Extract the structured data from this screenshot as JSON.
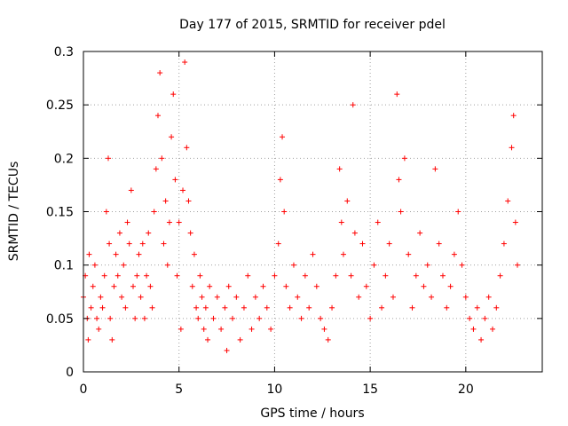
{
  "chart_data": {
    "type": "scatter",
    "title": "Day 177 of 2015, SRMTID for receiver pdel",
    "xlabel": "GPS time / hours",
    "ylabel": "SRMTID / TECUs",
    "xlim": [
      0,
      24
    ],
    "ylim": [
      0,
      0.3
    ],
    "xticks": [
      0,
      5,
      10,
      15,
      20
    ],
    "xtick_labels": [
      "0",
      "5",
      "10",
      "15",
      "20"
    ],
    "yticks": [
      0,
      0.05,
      0.1,
      0.15,
      0.2,
      0.25,
      0.3
    ],
    "ytick_labels": [
      "0",
      "0.05",
      "0.1",
      "0.15",
      "0.2",
      "0.25",
      "0.3"
    ],
    "grid": true,
    "marker": "+",
    "color": "#ff0000",
    "series": [
      {
        "name": "SRMTID",
        "points": [
          [
            0.0,
            0.07
          ],
          [
            0.1,
            0.09
          ],
          [
            0.2,
            0.05
          ],
          [
            0.25,
            0.03
          ],
          [
            0.3,
            0.11
          ],
          [
            0.4,
            0.06
          ],
          [
            0.5,
            0.08
          ],
          [
            0.6,
            0.1
          ],
          [
            0.7,
            0.05
          ],
          [
            0.8,
            0.04
          ],
          [
            0.9,
            0.07
          ],
          [
            1.0,
            0.06
          ],
          [
            1.1,
            0.09
          ],
          [
            1.2,
            0.15
          ],
          [
            1.3,
            0.2
          ],
          [
            1.35,
            0.12
          ],
          [
            1.4,
            0.05
          ],
          [
            1.5,
            0.03
          ],
          [
            1.6,
            0.08
          ],
          [
            1.7,
            0.11
          ],
          [
            1.8,
            0.09
          ],
          [
            1.9,
            0.13
          ],
          [
            2.0,
            0.07
          ],
          [
            2.1,
            0.1
          ],
          [
            2.2,
            0.06
          ],
          [
            2.3,
            0.14
          ],
          [
            2.4,
            0.12
          ],
          [
            2.5,
            0.17
          ],
          [
            2.6,
            0.08
          ],
          [
            2.7,
            0.05
          ],
          [
            2.8,
            0.09
          ],
          [
            2.9,
            0.11
          ],
          [
            3.0,
            0.07
          ],
          [
            3.1,
            0.12
          ],
          [
            3.2,
            0.05
          ],
          [
            3.3,
            0.09
          ],
          [
            3.4,
            0.13
          ],
          [
            3.5,
            0.08
          ],
          [
            3.6,
            0.06
          ],
          [
            3.7,
            0.15
          ],
          [
            3.8,
            0.19
          ],
          [
            3.9,
            0.24
          ],
          [
            4.0,
            0.28
          ],
          [
            4.1,
            0.2
          ],
          [
            4.2,
            0.12
          ],
          [
            4.3,
            0.16
          ],
          [
            4.4,
            0.1
          ],
          [
            4.5,
            0.14
          ],
          [
            4.6,
            0.22
          ],
          [
            4.7,
            0.26
          ],
          [
            4.8,
            0.18
          ],
          [
            4.9,
            0.09
          ],
          [
            5.0,
            0.14
          ],
          [
            5.1,
            0.04
          ],
          [
            5.2,
            0.17
          ],
          [
            5.3,
            0.29
          ],
          [
            5.4,
            0.21
          ],
          [
            5.5,
            0.16
          ],
          [
            5.6,
            0.13
          ],
          [
            5.7,
            0.08
          ],
          [
            5.8,
            0.11
          ],
          [
            5.9,
            0.06
          ],
          [
            6.0,
            0.05
          ],
          [
            6.1,
            0.09
          ],
          [
            6.2,
            0.07
          ],
          [
            6.3,
            0.04
          ],
          [
            6.4,
            0.06
          ],
          [
            6.5,
            0.03
          ],
          [
            6.6,
            0.08
          ],
          [
            6.8,
            0.05
          ],
          [
            7.0,
            0.07
          ],
          [
            7.2,
            0.04
          ],
          [
            7.4,
            0.06
          ],
          [
            7.5,
            0.02
          ],
          [
            7.6,
            0.08
          ],
          [
            7.8,
            0.05
          ],
          [
            8.0,
            0.07
          ],
          [
            8.2,
            0.03
          ],
          [
            8.4,
            0.06
          ],
          [
            8.6,
            0.09
          ],
          [
            8.8,
            0.04
          ],
          [
            9.0,
            0.07
          ],
          [
            9.2,
            0.05
          ],
          [
            9.4,
            0.08
          ],
          [
            9.6,
            0.06
          ],
          [
            9.8,
            0.04
          ],
          [
            10.0,
            0.09
          ],
          [
            10.2,
            0.12
          ],
          [
            10.3,
            0.18
          ],
          [
            10.4,
            0.22
          ],
          [
            10.5,
            0.15
          ],
          [
            10.6,
            0.08
          ],
          [
            10.8,
            0.06
          ],
          [
            11.0,
            0.1
          ],
          [
            11.2,
            0.07
          ],
          [
            11.4,
            0.05
          ],
          [
            11.6,
            0.09
          ],
          [
            11.8,
            0.06
          ],
          [
            12.0,
            0.11
          ],
          [
            12.2,
            0.08
          ],
          [
            12.4,
            0.05
          ],
          [
            12.6,
            0.04
          ],
          [
            12.8,
            0.03
          ],
          [
            13.0,
            0.06
          ],
          [
            13.2,
            0.09
          ],
          [
            13.4,
            0.19
          ],
          [
            13.5,
            0.14
          ],
          [
            13.6,
            0.11
          ],
          [
            13.8,
            0.16
          ],
          [
            14.0,
            0.09
          ],
          [
            14.1,
            0.25
          ],
          [
            14.2,
            0.13
          ],
          [
            14.4,
            0.07
          ],
          [
            14.6,
            0.12
          ],
          [
            14.8,
            0.08
          ],
          [
            15.0,
            0.05
          ],
          [
            15.2,
            0.1
          ],
          [
            15.4,
            0.14
          ],
          [
            15.6,
            0.06
          ],
          [
            15.8,
            0.09
          ],
          [
            16.0,
            0.12
          ],
          [
            16.2,
            0.07
          ],
          [
            16.4,
            0.26
          ],
          [
            16.5,
            0.18
          ],
          [
            16.6,
            0.15
          ],
          [
            16.8,
            0.2
          ],
          [
            17.0,
            0.11
          ],
          [
            17.2,
            0.06
          ],
          [
            17.4,
            0.09
          ],
          [
            17.6,
            0.13
          ],
          [
            17.8,
            0.08
          ],
          [
            18.0,
            0.1
          ],
          [
            18.2,
            0.07
          ],
          [
            18.4,
            0.19
          ],
          [
            18.6,
            0.12
          ],
          [
            18.8,
            0.09
          ],
          [
            19.0,
            0.06
          ],
          [
            19.2,
            0.08
          ],
          [
            19.4,
            0.11
          ],
          [
            19.6,
            0.15
          ],
          [
            19.8,
            0.1
          ],
          [
            20.0,
            0.07
          ],
          [
            20.2,
            0.05
          ],
          [
            20.4,
            0.04
          ],
          [
            20.6,
            0.06
          ],
          [
            20.8,
            0.03
          ],
          [
            21.0,
            0.05
          ],
          [
            21.2,
            0.07
          ],
          [
            21.4,
            0.04
          ],
          [
            21.6,
            0.06
          ],
          [
            21.8,
            0.09
          ],
          [
            22.0,
            0.12
          ],
          [
            22.2,
            0.16
          ],
          [
            22.4,
            0.21
          ],
          [
            22.5,
            0.24
          ],
          [
            22.6,
            0.14
          ],
          [
            22.7,
            0.1
          ]
        ]
      }
    ]
  }
}
